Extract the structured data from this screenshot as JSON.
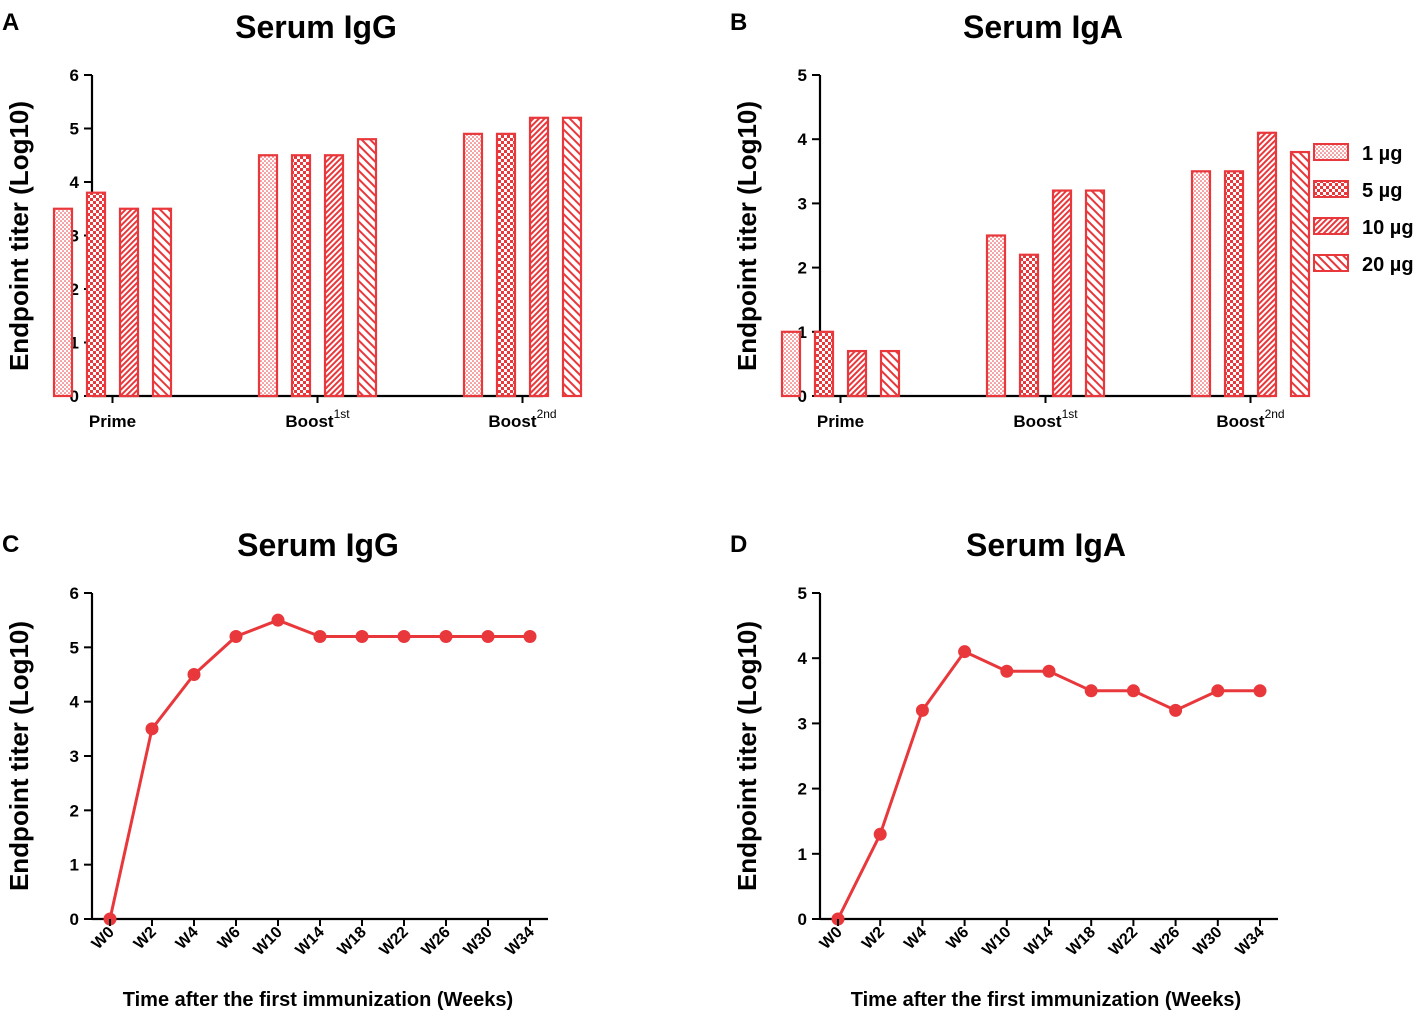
{
  "panels": [
    {
      "letter": "A",
      "type": "bar",
      "title": "Serum IgG",
      "ylabel": "Endpoint titer (Log10)",
      "ylim": [
        0,
        6
      ],
      "yticks": [
        "0",
        "1",
        "2",
        "3",
        "4",
        "5",
        "6"
      ],
      "groups": [
        {
          "label": "Boost",
          "sup": "",
          "prime": "Prime"
        }
      ],
      "categories": [
        {
          "main": "Prime",
          "sup": ""
        },
        {
          "main": "Boost",
          "sup": "1st"
        },
        {
          "main": "Boost",
          "sup": "2nd"
        }
      ],
      "series": [
        {
          "name": "1 µg",
          "values": [
            3.5,
            4.5,
            4.9
          ]
        },
        {
          "name": "5 µg",
          "values": [
            3.8,
            4.5,
            4.9
          ]
        },
        {
          "name": "10 µg",
          "values": [
            3.5,
            4.5,
            5.2
          ]
        },
        {
          "name": "20 µg",
          "values": [
            3.5,
            4.8,
            5.2
          ]
        }
      ]
    },
    {
      "letter": "B",
      "type": "bar",
      "title": "Serum IgA",
      "ylabel": "Endpoint titer (Log10)",
      "ylim": [
        0,
        5
      ],
      "yticks": [
        "0",
        "1",
        "2",
        "3",
        "4",
        "5"
      ],
      "categories": [
        {
          "main": "Prime",
          "sup": ""
        },
        {
          "main": "Boost",
          "sup": "1st"
        },
        {
          "main": "Boost",
          "sup": "2nd"
        }
      ],
      "series": [
        {
          "name": "1 µg",
          "values": [
            1.0,
            2.5,
            3.5
          ]
        },
        {
          "name": "5 µg",
          "values": [
            1.0,
            2.2,
            3.5
          ]
        },
        {
          "name": "10 µg",
          "values": [
            0.7,
            3.2,
            4.1
          ]
        },
        {
          "name": "20 µg",
          "values": [
            0.7,
            3.2,
            3.8
          ]
        }
      ]
    },
    {
      "letter": "C",
      "type": "line",
      "title": "Serum IgG",
      "ylabel": "Endpoint titer (Log10)",
      "xlabel": "Time after the first immunization (Weeks)",
      "ylim": [
        0,
        6
      ],
      "yticks": [
        "0",
        "1",
        "2",
        "3",
        "4",
        "5",
        "6"
      ],
      "x": [
        "W0",
        "W2",
        "W4",
        "W6",
        "W10",
        "W14",
        "W18",
        "W22",
        "W26",
        "W30",
        "W34"
      ],
      "values": [
        0,
        3.5,
        4.5,
        5.2,
        5.5,
        5.2,
        5.2,
        5.2,
        5.2,
        5.2,
        5.2
      ]
    },
    {
      "letter": "D",
      "type": "line",
      "title": "Serum IgA",
      "ylabel": "Endpoint titer (Log10)",
      "xlabel": "Time after the first immunization (Weeks)",
      "ylim": [
        0,
        5
      ],
      "yticks": [
        "0",
        "1",
        "2",
        "3",
        "4",
        "5"
      ],
      "x": [
        "W0",
        "W2",
        "W4",
        "W6",
        "W10",
        "W14",
        "W18",
        "W22",
        "W26",
        "W30",
        "W34"
      ],
      "values": [
        0,
        1.3,
        3.2,
        4.1,
        3.8,
        3.8,
        3.5,
        3.5,
        3.2,
        3.5,
        3.5
      ]
    }
  ],
  "legend": [
    "1 µg",
    "5 µg",
    "10 µg",
    "20 µg"
  ],
  "colors": {
    "accent": "#e8383c",
    "axis": "#000000"
  },
  "chart_data": [
    {
      "type": "bar",
      "title": "Serum IgG",
      "ylabel": "Endpoint titer (Log10)",
      "ylim": [
        0,
        6
      ],
      "categories": [
        "Prime",
        "Boost 1st",
        "Boost 2nd"
      ],
      "series": [
        {
          "name": "1 µg",
          "values": [
            3.5,
            4.5,
            4.9
          ]
        },
        {
          "name": "5 µg",
          "values": [
            3.8,
            4.5,
            4.9
          ]
        },
        {
          "name": "10 µg",
          "values": [
            3.5,
            4.5,
            5.2
          ]
        },
        {
          "name": "20 µg",
          "values": [
            3.5,
            4.8,
            5.2
          ]
        }
      ]
    },
    {
      "type": "bar",
      "title": "Serum IgA",
      "ylabel": "Endpoint titer (Log10)",
      "ylim": [
        0,
        5
      ],
      "categories": [
        "Prime",
        "Boost 1st",
        "Boost 2nd"
      ],
      "series": [
        {
          "name": "1 µg",
          "values": [
            1.0,
            2.5,
            3.5
          ]
        },
        {
          "name": "5 µg",
          "values": [
            1.0,
            2.2,
            3.5
          ]
        },
        {
          "name": "10 µg",
          "values": [
            0.7,
            3.2,
            4.1
          ]
        },
        {
          "name": "20 µg",
          "values": [
            0.7,
            3.2,
            3.8
          ]
        }
      ]
    },
    {
      "type": "line",
      "title": "Serum IgG",
      "xlabel": "Time after the first immunization (Weeks)",
      "ylabel": "Endpoint titer (Log10)",
      "ylim": [
        0,
        6
      ],
      "x": [
        "W0",
        "W2",
        "W4",
        "W6",
        "W10",
        "W14",
        "W18",
        "W22",
        "W26",
        "W30",
        "W34"
      ],
      "values": [
        0,
        3.5,
        4.5,
        5.2,
        5.5,
        5.2,
        5.2,
        5.2,
        5.2,
        5.2,
        5.2
      ]
    },
    {
      "type": "line",
      "title": "Serum IgA",
      "xlabel": "Time after the first immunization (Weeks)",
      "ylabel": "Endpoint titer (Log10)",
      "ylim": [
        0,
        5
      ],
      "x": [
        "W0",
        "W2",
        "W4",
        "W6",
        "W10",
        "W14",
        "W18",
        "W22",
        "W26",
        "W30",
        "W34"
      ],
      "values": [
        0,
        1.3,
        3.2,
        4.1,
        3.8,
        3.8,
        3.5,
        3.5,
        3.2,
        3.5,
        3.5
      ]
    }
  ]
}
